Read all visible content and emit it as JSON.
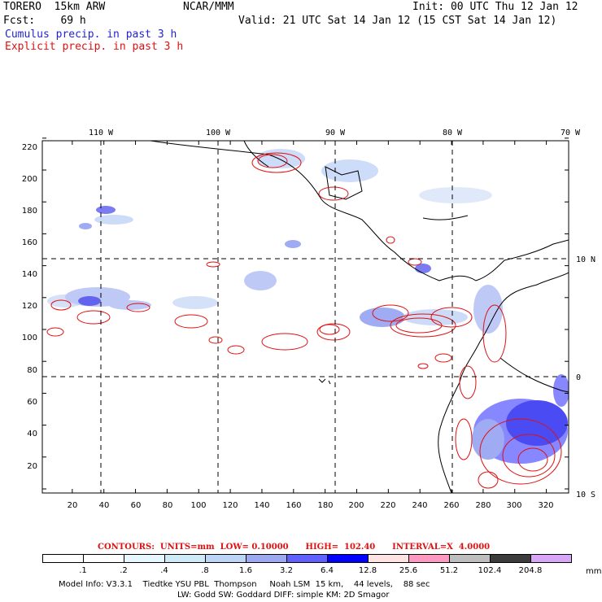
{
  "header": {
    "model": "TORERO  15km ARW",
    "org": "NCAR/MMM",
    "init": "Init: 00 UTC Thu 12 Jan 12",
    "fcst": "Fcst:    69 h",
    "valid": "Valid: 21 UTC Sat 14 Jan 12 (15 CST Sat 14 Jan 12)",
    "legend_cumulus": "Cumulus precip. in past 3 h",
    "legend_explicit": "Explicit precip. in past 3 h"
  },
  "map": {
    "top_lon_labels": [
      "110 W",
      "100 W",
      "90 W",
      "80 W",
      "70 W"
    ],
    "right_lat_labels": [
      "10 N",
      "0",
      "10 S"
    ],
    "y_ticks": [
      "20",
      "40",
      "60",
      "80",
      "100",
      "120",
      "140",
      "160",
      "180",
      "200",
      "220"
    ],
    "x_ticks": [
      "20",
      "40",
      "60",
      "80",
      "100",
      "120",
      "140",
      "160",
      "180",
      "200",
      "220",
      "240",
      "260",
      "280",
      "300",
      "320"
    ]
  },
  "contours_label": {
    "text": "CONTOURS:  UNITS=mm  LOW= 0.10000      HIGH=  102.40      INTERVAL=X  4.0000"
  },
  "colorbar": {
    "unit": "mm",
    "labels": [
      ".1",
      ".2",
      ".4",
      ".8",
      "1.6",
      "3.2",
      "6.4",
      "12.8",
      "25.6",
      "51.2",
      "102.4",
      "204.8"
    ],
    "colors": [
      "#ffffff",
      "#ffffff",
      "#e6f7ff",
      "#cfeaf7",
      "#bcd4f5",
      "#9ca8f0",
      "#6060ff",
      "#0000ff",
      "#ffe2e2",
      "#ff98c0",
      "#bebebe",
      "#3c3c3c",
      "#d9a6f7"
    ]
  },
  "footer": {
    "line1": "Model Info: V3.3.1    Tiedtke YSU PBL  Thompson     Noah LSM  15 km,    44 levels,    88 sec",
    "line2": "LW: Godd SW: Goddard DIFF: simple KM: 2D Smagor"
  }
}
